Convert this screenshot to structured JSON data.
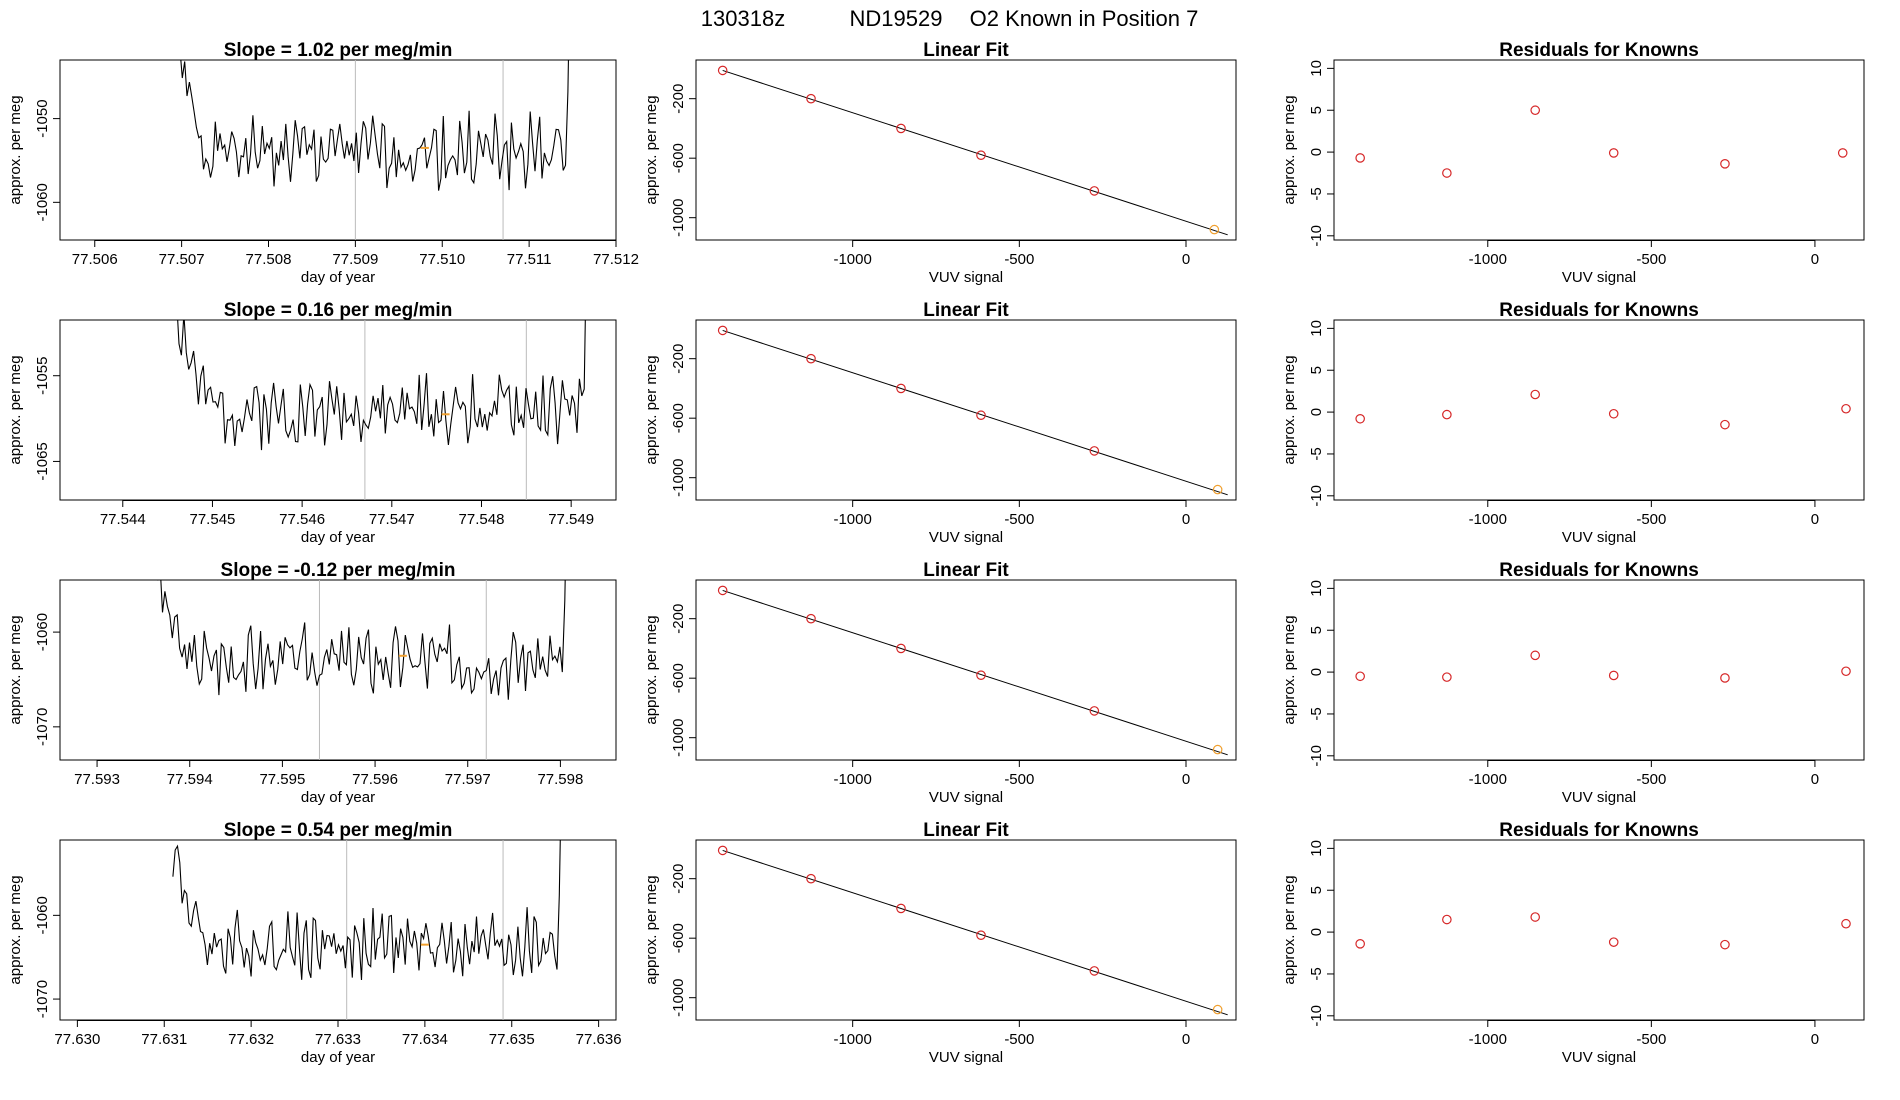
{
  "figure": {
    "header": [
      "130318z",
      "ND19529",
      "O2 Known in Position  7"
    ],
    "colors": {
      "line": "#000000",
      "grid_vline": "#bbbbbb",
      "point": "#d62728",
      "highlight": "#f0a030"
    }
  },
  "chart_data": [
    {
      "type": "line",
      "title": "Slope =  1.02  per meg/min",
      "xlabel": "day of year",
      "ylabel": "approx. per meg",
      "xlim": [
        77.5056,
        77.512
      ],
      "ylim": [
        -1064.5,
        -1043
      ],
      "xticks": [
        "77.506",
        "77.507",
        "77.508",
        "77.509",
        "77.510",
        "77.511",
        "77.512"
      ],
      "yticks": [
        "-1050",
        "-1060"
      ],
      "vlines": [
        77.509,
        77.5107
      ],
      "highlight": {
        "x": 77.5098,
        "y": -1053.5
      },
      "series": {
        "x_start": 77.5069,
        "x_end": 77.5115,
        "base": -1054,
        "amp": 3,
        "spike": 15,
        "seed": 1
      }
    },
    {
      "type": "scatter",
      "title": "Linear Fit",
      "xlabel": "VUV signal",
      "ylabel": "approx. per meg",
      "xlim": [
        -1470,
        150
      ],
      "ylim": [
        -1150,
        60
      ],
      "xticks": [
        "-1000",
        "-500",
        "0"
      ],
      "yticks": [
        "-200",
        "-600",
        "-1000"
      ],
      "points": {
        "x": [
          -1390,
          -1125,
          -855,
          -615,
          -275,
          85
        ],
        "y": [
          -10,
          -200,
          -400,
          -580,
          -820,
          -1080
        ]
      },
      "fit": {
        "x": [
          -1390,
          125
        ],
        "y": [
          -10,
          -1115
        ]
      },
      "highlight_last": true
    },
    {
      "type": "scatter",
      "title": "Residuals for Knowns",
      "xlabel": "VUV signal",
      "ylabel": "approx. per meg",
      "xlim": [
        -1470,
        150
      ],
      "ylim": [
        -10.5,
        11
      ],
      "xticks": [
        "-1000",
        "-500",
        "0"
      ],
      "yticks": [
        "10",
        "5",
        "0",
        "-5",
        "-10"
      ],
      "points": {
        "x": [
          -1390,
          -1125,
          -855,
          -615,
          -275,
          85
        ],
        "y": [
          -0.7,
          -2.5,
          5,
          -0.1,
          -1.4,
          -0.1
        ]
      }
    },
    {
      "type": "line",
      "title": "Slope =  0.16  per meg/min",
      "xlabel": "day of year",
      "ylabel": "approx. per meg",
      "xlim": [
        77.5433,
        77.5495
      ],
      "ylim": [
        -1069.5,
        -1048.5
      ],
      "xticks": [
        "77.544",
        "77.545",
        "77.546",
        "77.547",
        "77.548",
        "77.549"
      ],
      "yticks": [
        "-1055",
        "-1065"
      ],
      "vlines": [
        77.5467,
        77.5485
      ],
      "highlight": {
        "x": 77.5476,
        "y": -1059.5
      },
      "series": {
        "x_start": 77.5446,
        "x_end": 77.5492,
        "base": -1059,
        "amp": 2.8,
        "spike": 12,
        "seed": 2
      }
    },
    {
      "type": "scatter",
      "title": "Linear Fit",
      "xlabel": "VUV signal",
      "ylabel": "approx. per meg",
      "xlim": [
        -1470,
        150
      ],
      "ylim": [
        -1150,
        60
      ],
      "xticks": [
        "-1000",
        "-500",
        "0"
      ],
      "yticks": [
        "-200",
        "-600",
        "-1000"
      ],
      "points": {
        "x": [
          -1390,
          -1125,
          -855,
          -615,
          -275,
          95
        ],
        "y": [
          -10,
          -200,
          -400,
          -580,
          -820,
          -1080
        ]
      },
      "fit": {
        "x": [
          -1390,
          125
        ],
        "y": [
          -10,
          -1115
        ]
      },
      "highlight_last": true
    },
    {
      "type": "scatter",
      "title": "Residuals for Knowns",
      "xlabel": "VUV signal",
      "ylabel": "approx. per meg",
      "xlim": [
        -1470,
        150
      ],
      "ylim": [
        -10.5,
        11
      ],
      "xticks": [
        "-1000",
        "-500",
        "0"
      ],
      "yticks": [
        "10",
        "5",
        "0",
        "-5",
        "-10"
      ],
      "points": {
        "x": [
          -1390,
          -1125,
          -855,
          -615,
          -275,
          95
        ],
        "y": [
          -0.8,
          -0.3,
          2.1,
          -0.2,
          -1.5,
          0.4
        ]
      }
    },
    {
      "type": "line",
      "title": "Slope =  -0.12  per meg/min",
      "xlabel": "day of year",
      "ylabel": "approx. per meg",
      "xlim": [
        77.5926,
        77.5986
      ],
      "ylim": [
        -1073.5,
        -1054.5
      ],
      "xticks": [
        "77.593",
        "77.594",
        "77.595",
        "77.596",
        "77.597",
        "77.598"
      ],
      "yticks": [
        "-1060",
        "-1070"
      ],
      "vlines": [
        77.5954,
        77.5972
      ],
      "highlight": {
        "x": 77.5963,
        "y": -1062.5
      },
      "series": {
        "x_start": 77.5936,
        "x_end": 77.5981,
        "base": -1063,
        "amp": 2.5,
        "spike": 11,
        "seed": 3
      }
    },
    {
      "type": "scatter",
      "title": "Linear Fit",
      "xlabel": "VUV signal",
      "ylabel": "approx. per meg",
      "xlim": [
        -1470,
        150
      ],
      "ylim": [
        -1150,
        60
      ],
      "xticks": [
        "-1000",
        "-500",
        "0"
      ],
      "yticks": [
        "-200",
        "-600",
        "-1000"
      ],
      "points": {
        "x": [
          -1390,
          -1125,
          -855,
          -615,
          -275,
          95
        ],
        "y": [
          -10,
          -200,
          -400,
          -580,
          -820,
          -1080
        ]
      },
      "fit": {
        "x": [
          -1390,
          125
        ],
        "y": [
          -10,
          -1115
        ]
      },
      "highlight_last": true
    },
    {
      "type": "scatter",
      "title": "Residuals for Knowns",
      "xlabel": "VUV signal",
      "ylabel": "approx. per meg",
      "xlim": [
        -1470,
        150
      ],
      "ylim": [
        -10.5,
        11
      ],
      "xticks": [
        "-1000",
        "-500",
        "0"
      ],
      "yticks": [
        "10",
        "5",
        "0",
        "-5",
        "-10"
      ],
      "points": {
        "x": [
          -1390,
          -1125,
          -855,
          -615,
          -275,
          95
        ],
        "y": [
          -0.5,
          -0.6,
          2.0,
          -0.4,
          -0.7,
          0.1
        ]
      }
    },
    {
      "type": "line",
      "title": "Slope =  0.54  per meg/min",
      "xlabel": "day of year",
      "ylabel": "approx. per meg",
      "xlim": [
        77.6298,
        77.6362
      ],
      "ylim": [
        -1072.5,
        -1051
      ],
      "xticks": [
        "77.630",
        "77.631",
        "77.632",
        "77.633",
        "77.634",
        "77.635",
        "77.636"
      ],
      "yticks": [
        "-1060",
        "-1070"
      ],
      "vlines": [
        77.6331,
        77.6349
      ],
      "highlight": {
        "x": 77.634,
        "y": -1063.5
      },
      "series": {
        "x_start": 77.6311,
        "x_end": 77.6356,
        "base": -1063.5,
        "amp": 2.7,
        "spike": 12,
        "seed": 4
      }
    },
    {
      "type": "scatter",
      "title": "Linear Fit",
      "xlabel": "VUV signal",
      "ylabel": "approx. per meg",
      "xlim": [
        -1470,
        150
      ],
      "ylim": [
        -1150,
        60
      ],
      "xticks": [
        "-1000",
        "-500",
        "0"
      ],
      "yticks": [
        "-200",
        "-600",
        "-1000"
      ],
      "points": {
        "x": [
          -1390,
          -1125,
          -855,
          -615,
          -275,
          95
        ],
        "y": [
          -10,
          -200,
          -400,
          -580,
          -820,
          -1080
        ]
      },
      "fit": {
        "x": [
          -1390,
          125
        ],
        "y": [
          -10,
          -1115
        ]
      },
      "highlight_last": true
    },
    {
      "type": "scatter",
      "title": "Residuals for Knowns",
      "xlabel": "VUV signal",
      "ylabel": "approx. per meg",
      "xlim": [
        -1470,
        150
      ],
      "ylim": [
        -10.5,
        11
      ],
      "xticks": [
        "-1000",
        "-500",
        "0"
      ],
      "yticks": [
        "10",
        "5",
        "0",
        "-5",
        "-10"
      ],
      "points": {
        "x": [
          -1390,
          -1125,
          -855,
          -615,
          -275,
          95
        ],
        "y": [
          -1.4,
          1.5,
          1.8,
          -1.2,
          -1.5,
          1.0
        ]
      }
    }
  ]
}
